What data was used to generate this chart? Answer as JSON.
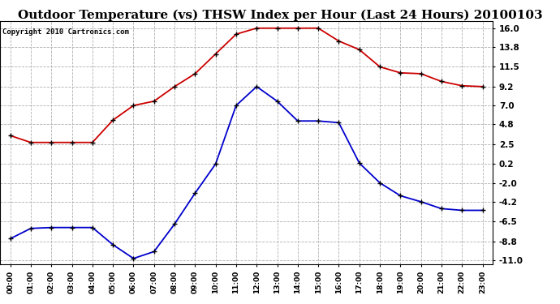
{
  "title": "Outdoor Temperature (vs) THSW Index per Hour (Last 24 Hours) 20100103",
  "copyright": "Copyright 2010 Cartronics.com",
  "hours": [
    0,
    1,
    2,
    3,
    4,
    5,
    6,
    7,
    8,
    9,
    10,
    11,
    12,
    13,
    14,
    15,
    16,
    17,
    18,
    19,
    20,
    21,
    22,
    23
  ],
  "red_data": [
    3.5,
    2.7,
    2.7,
    2.7,
    2.7,
    5.3,
    7.0,
    7.5,
    9.2,
    10.7,
    13.0,
    15.3,
    16.0,
    16.0,
    16.0,
    16.0,
    14.5,
    13.5,
    11.5,
    10.8,
    10.7,
    9.8,
    9.3,
    9.2
  ],
  "blue_data": [
    -8.5,
    -7.3,
    -7.2,
    -7.2,
    -7.2,
    -9.2,
    -10.8,
    -10.0,
    -6.8,
    -3.2,
    0.2,
    7.0,
    9.2,
    7.5,
    5.2,
    5.2,
    5.0,
    0.3,
    -2.0,
    -3.5,
    -4.2,
    -5.0,
    -5.2,
    -5.2
  ],
  "red_color": "#cc0000",
  "blue_color": "#0000cc",
  "yticks": [
    16.0,
    13.8,
    11.5,
    9.2,
    7.0,
    4.8,
    2.5,
    0.2,
    -2.0,
    -4.2,
    -6.5,
    -8.8,
    -11.0
  ],
  "ylim": [
    -11.5,
    16.8
  ],
  "bg_color": "#ffffff",
  "grid_color": "#b0b0b0",
  "title_fontsize": 11,
  "copyright_fontsize": 6.5
}
